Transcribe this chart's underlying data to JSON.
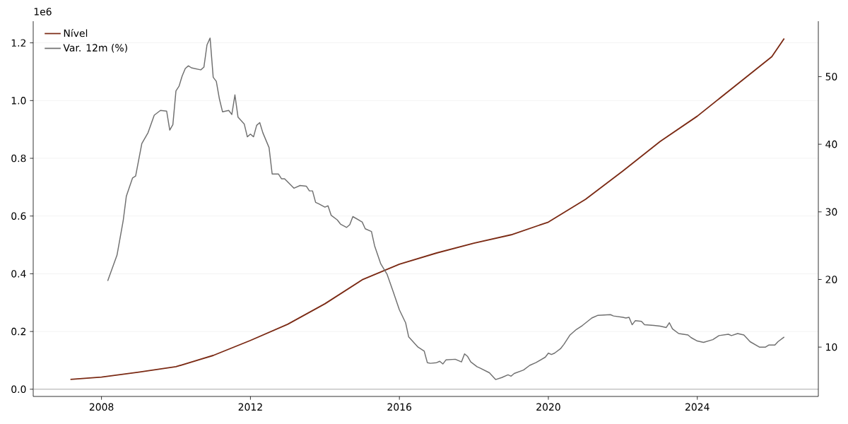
{
  "chart_data": {
    "type": "line",
    "xlim": [
      "2006-03",
      "2027-04"
    ],
    "xticks": [
      "2008",
      "2012",
      "2016",
      "2020",
      "2024"
    ],
    "ylim": [
      -0.025,
      1.275
    ],
    "yticks": [
      {
        "value": 0,
        "label": "0.0"
      },
      {
        "value": 0.2,
        "label": "0.2"
      },
      {
        "value": 0.4,
        "label": "0.4"
      },
      {
        "value": 0.6,
        "label": "0.6"
      },
      {
        "value": 0.8,
        "label": "0.8"
      },
      {
        "value": 1.0,
        "label": "1.0"
      },
      {
        "value": 1.2,
        "label": "1.2"
      }
    ],
    "y2lim": [
      2.7,
      58.2
    ],
    "y2ticks": [
      10,
      20,
      30,
      40,
      50
    ],
    "grid": "y",
    "legend": "top left",
    "annotations": [
      "1e6"
    ],
    "ref_lines": [
      {
        "axis": "y",
        "value": 0,
        "color": "#999999"
      }
    ],
    "series": [
      {
        "name": "Nível",
        "color": "#7b2a14",
        "x": [
          "2007-03",
          "2008-01",
          "2009-01",
          "2010-01",
          "2011-01",
          "2012-01",
          "2013-01",
          "2014-01",
          "2015-01",
          "2016-01",
          "2017-01",
          "2018-01",
          "2019-01",
          "2020-01",
          "2021-01",
          "2022-01",
          "2023-01",
          "2024-01",
          "2025-01",
          "2026-01",
          "2026-05"
        ],
        "values": [
          0.034,
          0.042,
          0.059,
          0.078,
          0.117,
          0.169,
          0.225,
          0.296,
          0.379,
          0.433,
          0.472,
          0.506,
          0.535,
          0.579,
          0.658,
          0.756,
          0.858,
          0.946,
          1.049,
          1.152,
          1.215
        ]
      },
      {
        "name": "Var. 12m (%)",
        "color": "#707070",
        "axis": "y2",
        "x": [
          "2008-03",
          "2008-06",
          "2008-08",
          "2008-09",
          "2008-11",
          "2008-12",
          "2009-02",
          "2009-04",
          "2009-06",
          "2009-08",
          "2009-10",
          "2009-11",
          "2009-12",
          "2010-01",
          "2010-02",
          "2010-03",
          "2010-04",
          "2010-05",
          "2010-06",
          "2010-09",
          "2010-10",
          "2010-11",
          "2010-12",
          "2011-01",
          "2011-02",
          "2011-03",
          "2011-04",
          "2011-06",
          "2011-07",
          "2011-08",
          "2011-09",
          "2011-11",
          "2011-12",
          "2012-01",
          "2012-02",
          "2012-03",
          "2012-04",
          "2012-05",
          "2012-07",
          "2012-08",
          "2012-10",
          "2012-11",
          "2012-12",
          "2013-03",
          "2013-05",
          "2013-07",
          "2013-08",
          "2013-09",
          "2013-10",
          "2013-11",
          "2014-01",
          "2014-02",
          "2014-03",
          "2014-05",
          "2014-06",
          "2014-08",
          "2014-09",
          "2014-10",
          "2015-01",
          "2015-02",
          "2015-04",
          "2015-05",
          "2015-07",
          "2015-09",
          "2015-11",
          "2016-01",
          "2016-03",
          "2016-04",
          "2016-07",
          "2016-09",
          "2016-10",
          "2016-11",
          "2017-01",
          "2017-02",
          "2017-03",
          "2017-04",
          "2017-07",
          "2017-09",
          "2017-10",
          "2017-11",
          "2017-12",
          "2018-02",
          "2018-03",
          "2018-06",
          "2018-08",
          "2018-10",
          "2018-12",
          "2019-01",
          "2019-02",
          "2019-05",
          "2019-07",
          "2019-09",
          "2019-12",
          "2020-01",
          "2020-02",
          "2020-03",
          "2020-05",
          "2020-06",
          "2020-08",
          "2020-10",
          "2020-12",
          "2021-03",
          "2021-05",
          "2021-09",
          "2021-10",
          "2022-01",
          "2022-02",
          "2022-03",
          "2022-04",
          "2022-05",
          "2022-07",
          "2022-08",
          "2022-11",
          "2023-01",
          "2023-03",
          "2023-04",
          "2023-05",
          "2023-07",
          "2023-10",
          "2023-11",
          "2024-01",
          "2024-03",
          "2024-06",
          "2024-08",
          "2024-11",
          "2024-12",
          "2025-02",
          "2025-04",
          "2025-06",
          "2025-09",
          "2025-11",
          "2025-12",
          "2026-02",
          "2026-03",
          "2026-05"
        ],
        "values": [
          19.8,
          23.6,
          28.7,
          32.3,
          35.0,
          35.3,
          40.1,
          41.7,
          44.3,
          45.0,
          44.9,
          42.1,
          42.9,
          47.9,
          48.6,
          50.1,
          51.2,
          51.6,
          51.3,
          51.0,
          51.4,
          54.7,
          55.7,
          49.9,
          49.3,
          46.7,
          44.8,
          45.0,
          44.4,
          47.3,
          44.0,
          43.0,
          41.1,
          41.5,
          41.1,
          42.8,
          43.2,
          41.7,
          39.5,
          35.6,
          35.6,
          34.9,
          34.9,
          33.5,
          33.9,
          33.8,
          33.1,
          33.1,
          31.4,
          31.2,
          30.7,
          30.9,
          29.5,
          28.8,
          28.2,
          27.7,
          28.1,
          29.3,
          28.5,
          27.5,
          27.1,
          25.0,
          22.3,
          20.8,
          18.2,
          15.5,
          13.6,
          11.5,
          10.0,
          9.4,
          7.7,
          7.6,
          7.7,
          7.9,
          7.5,
          8.1,
          8.2,
          7.8,
          9.0,
          8.6,
          7.8,
          7.1,
          6.9,
          6.2,
          5.2,
          5.5,
          5.9,
          5.7,
          6.1,
          6.6,
          7.3,
          7.7,
          8.5,
          9.1,
          8.9,
          9.1,
          9.8,
          10.4,
          11.8,
          12.6,
          13.2,
          14.3,
          14.7,
          14.8,
          14.6,
          14.4,
          14.3,
          14.4,
          13.3,
          13.9,
          13.8,
          13.3,
          13.2,
          13.1,
          12.9,
          13.6,
          12.7,
          12.0,
          11.8,
          11.4,
          10.9,
          10.7,
          11.1,
          11.7,
          11.9,
          11.7,
          12.0,
          11.8,
          10.8,
          10.0,
          10.0,
          10.3,
          10.3,
          10.8,
          11.5
        ]
      }
    ]
  }
}
